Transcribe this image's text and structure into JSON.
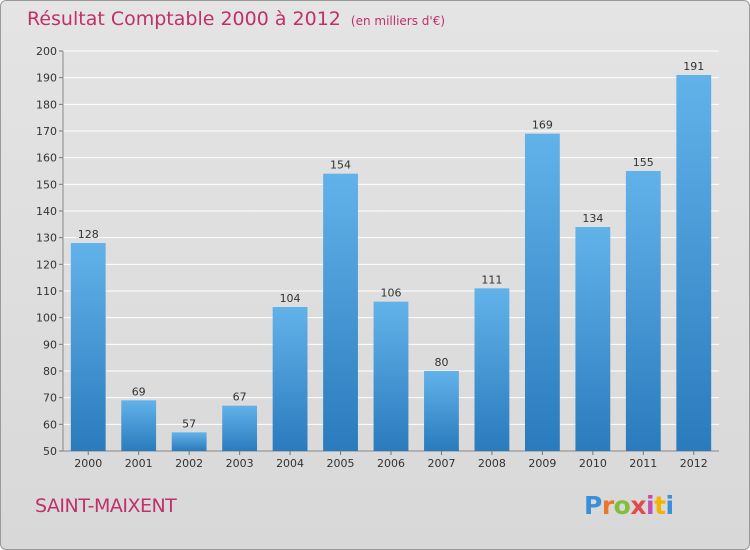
{
  "title": "Résultat Comptable 2000 à 2012",
  "subtitle": "(en milliers d'€)",
  "municipality": "SAINT-MAIXENT",
  "logo": "Proxiti",
  "colors": {
    "title": "#c0306a",
    "bar_light": "#62b2ea",
    "bar_dark": "#2a7bbd",
    "grid": "#ffffff",
    "background": "#dedede"
  },
  "chart_data": {
    "type": "bar",
    "categories": [
      "2000",
      "2001",
      "2002",
      "2003",
      "2004",
      "2005",
      "2006",
      "2007",
      "2008",
      "2009",
      "2010",
      "2011",
      "2012"
    ],
    "values": [
      128,
      69,
      57,
      67,
      104,
      154,
      106,
      80,
      111,
      169,
      134,
      155,
      191
    ],
    "ylim": [
      50,
      200
    ],
    "yticks": [
      50,
      60,
      70,
      80,
      90,
      100,
      110,
      120,
      130,
      140,
      150,
      160,
      170,
      180,
      190,
      200
    ],
    "grid": true,
    "data_labels": true
  }
}
